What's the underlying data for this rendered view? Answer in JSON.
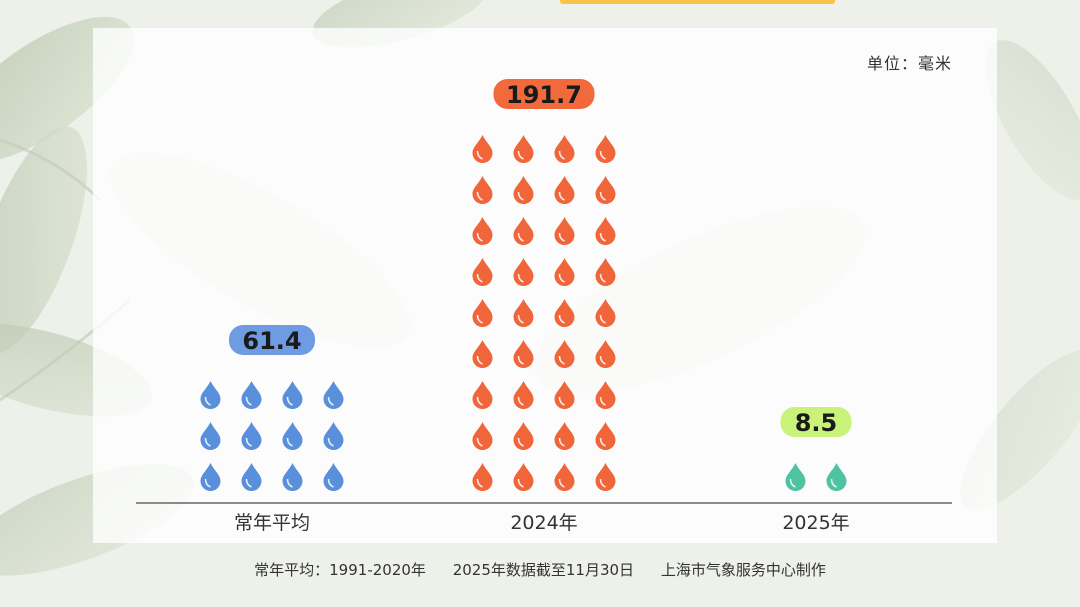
{
  "unit_label": "单位：毫米",
  "footer": {
    "note_average": "常年平均：1991-2020年",
    "note_cutoff": "2025年数据截至11月30日",
    "note_source": "上海市气象服务中心制作"
  },
  "colors": {
    "average": "#5a8fdc",
    "y2024": "#f0663a",
    "y2025": "#4fc3a1",
    "label_average_bg": "#6f9be3",
    "label_2024_bg": "#f2693c",
    "label_2025_bg": "#c8f27a",
    "axis": "#8a8a8a"
  },
  "chart_data": {
    "type": "bar",
    "title": "",
    "xlabel": "",
    "ylabel": "",
    "categories": [
      "常年平均",
      "2024年",
      "2025年"
    ],
    "values": [
      61.4,
      191.7,
      8.5
    ],
    "value_labels": [
      "61.4",
      "191.7",
      "8.5"
    ],
    "drop_counts": [
      12,
      36,
      2
    ],
    "unit": "毫米"
  }
}
